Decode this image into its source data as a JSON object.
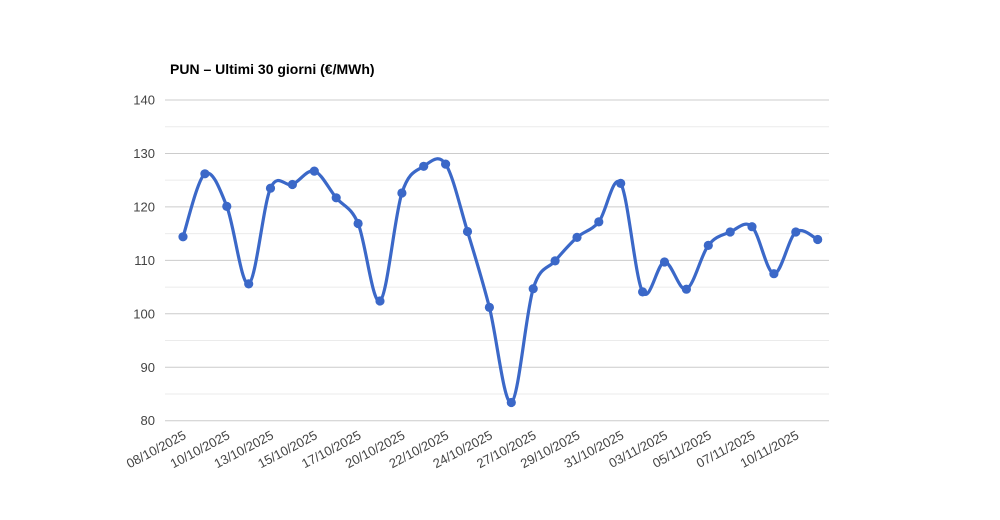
{
  "chart": {
    "title": "PUN – Ultimi 30 giorni (€/MWh)"
  },
  "chart_data": {
    "type": "line",
    "title": "PUN – Ultimi 30 giorni (€/MWh)",
    "x": [
      "08/10/2025",
      "09/10/2025",
      "10/10/2025",
      "11/10/2025",
      "13/10/2025",
      "14/10/2025",
      "15/10/2025",
      "16/10/2025",
      "17/10/2025",
      "18/10/2025",
      "20/10/2025",
      "21/10/2025",
      "22/10/2025",
      "23/10/2025",
      "24/10/2025",
      "25/10/2025",
      "27/10/2025",
      "28/10/2025",
      "29/10/2025",
      "30/10/2025",
      "31/10/2025",
      "01/11/2025",
      "03/11/2025",
      "04/11/2025",
      "05/11/2025",
      "06/11/2025",
      "07/11/2025",
      "08/11/2025",
      "10/11/2025",
      "11/11/2025"
    ],
    "values": [
      114.4,
      126.2,
      120.1,
      105.6,
      123.5,
      124.2,
      126.7,
      121.7,
      116.9,
      102.4,
      122.6,
      127.6,
      128.0,
      115.4,
      101.2,
      83.4,
      104.7,
      109.9,
      114.3,
      117.2,
      124.4,
      104.1,
      109.7,
      104.6,
      112.8,
      115.3,
      116.3,
      107.5,
      115.3,
      113.9
    ],
    "x_tick_labels_visible": [
      "08/10/2025",
      "10/10/2025",
      "13/10/2025",
      "15/10/2025",
      "17/10/2025",
      "20/10/2025",
      "22/10/2025",
      "24/10/2025",
      "27/10/2025",
      "29/10/2025",
      "31/10/2025",
      "03/11/2025",
      "05/11/2025",
      "07/11/2025",
      "10/11/2025"
    ],
    "x_tick_every": 2,
    "xlabel": "",
    "ylabel": "",
    "ylim": [
      80,
      140
    ],
    "y_tick_labels": [
      "80",
      "90",
      "100",
      "110",
      "120",
      "130",
      "140"
    ],
    "y_major_step": 10,
    "y_minor_step": 5,
    "grid": true,
    "legend": "none",
    "smooth": true,
    "line_color": "#3b68c8",
    "marker_color": "#3b68c8",
    "major_grid_color": "#cccccc",
    "minor_grid_color": "#ebebeb",
    "axis_label_color": "#444444",
    "x_label_angle_deg": -28
  }
}
